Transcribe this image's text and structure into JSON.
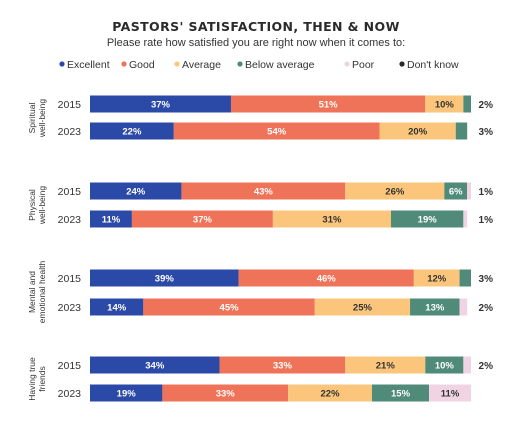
{
  "chart_data": {
    "type": "bar",
    "orientation": "horizontal-stacked",
    "title": "PASTORS' SATISFACTION, THEN & NOW",
    "subtitle": "Please rate how satisfied you are right now when it comes to:",
    "legend_position": "top",
    "xlim": [
      0,
      100
    ],
    "unit": "%",
    "series": [
      {
        "name": "Excellent",
        "color": "#2b4aa8"
      },
      {
        "name": "Good",
        "color": "#ef7358"
      },
      {
        "name": "Average",
        "color": "#fbc57c"
      },
      {
        "name": "Below average",
        "color": "#4f8b78"
      },
      {
        "name": "Poor",
        "color": "#f1d4e4"
      },
      {
        "name": "Don't know",
        "color": "#2a2a2a"
      }
    ],
    "groups": [
      {
        "category": [
          "Spiritual",
          "well-being"
        ],
        "rows": [
          {
            "year": "2015",
            "values": [
              37,
              51,
              10,
              2,
              0,
              0
            ],
            "labels": [
              "37%",
              "51%",
              "10%",
              "",
              "",
              ""
            ],
            "outside": "2%"
          },
          {
            "year": "2023",
            "values": [
              22,
              54,
              20,
              3,
              0,
              0
            ],
            "labels": [
              "22%",
              "54%",
              "20%",
              "",
              "",
              ""
            ],
            "outside": "3%"
          }
        ]
      },
      {
        "category": [
          "Physical",
          "well-being"
        ],
        "rows": [
          {
            "year": "2015",
            "values": [
              24,
              43,
              26,
              6,
              1,
              0
            ],
            "labels": [
              "24%",
              "43%",
              "26%",
              "6%",
              "",
              ""
            ],
            "outside": "1%"
          },
          {
            "year": "2023",
            "values": [
              11,
              37,
              31,
              19,
              1,
              0
            ],
            "labels": [
              "11%",
              "37%",
              "31%",
              "19%",
              "",
              ""
            ],
            "outside": "1%"
          }
        ]
      },
      {
        "category": [
          "Mental and",
          "emotional health"
        ],
        "rows": [
          {
            "year": "2015",
            "values": [
              39,
              46,
              12,
              3,
              0,
              0
            ],
            "labels": [
              "39%",
              "46%",
              "12%",
              "",
              "",
              ""
            ],
            "outside": "3%"
          },
          {
            "year": "2023",
            "values": [
              14,
              45,
              25,
              13,
              2,
              0
            ],
            "labels": [
              "14%",
              "45%",
              "25%",
              "13%",
              "",
              ""
            ],
            "outside": "2%"
          }
        ]
      },
      {
        "category": [
          "Having true",
          "friends"
        ],
        "rows": [
          {
            "year": "2015",
            "values": [
              34,
              33,
              21,
              10,
              2,
              0
            ],
            "labels": [
              "34%",
              "33%",
              "21%",
              "10%",
              "",
              ""
            ],
            "outside": "2%"
          },
          {
            "year": "2023",
            "values": [
              19,
              33,
              22,
              15,
              11,
              0
            ],
            "labels": [
              "19%",
              "33%",
              "22%",
              "15%",
              "11%",
              ""
            ],
            "outside": ""
          }
        ]
      }
    ]
  }
}
